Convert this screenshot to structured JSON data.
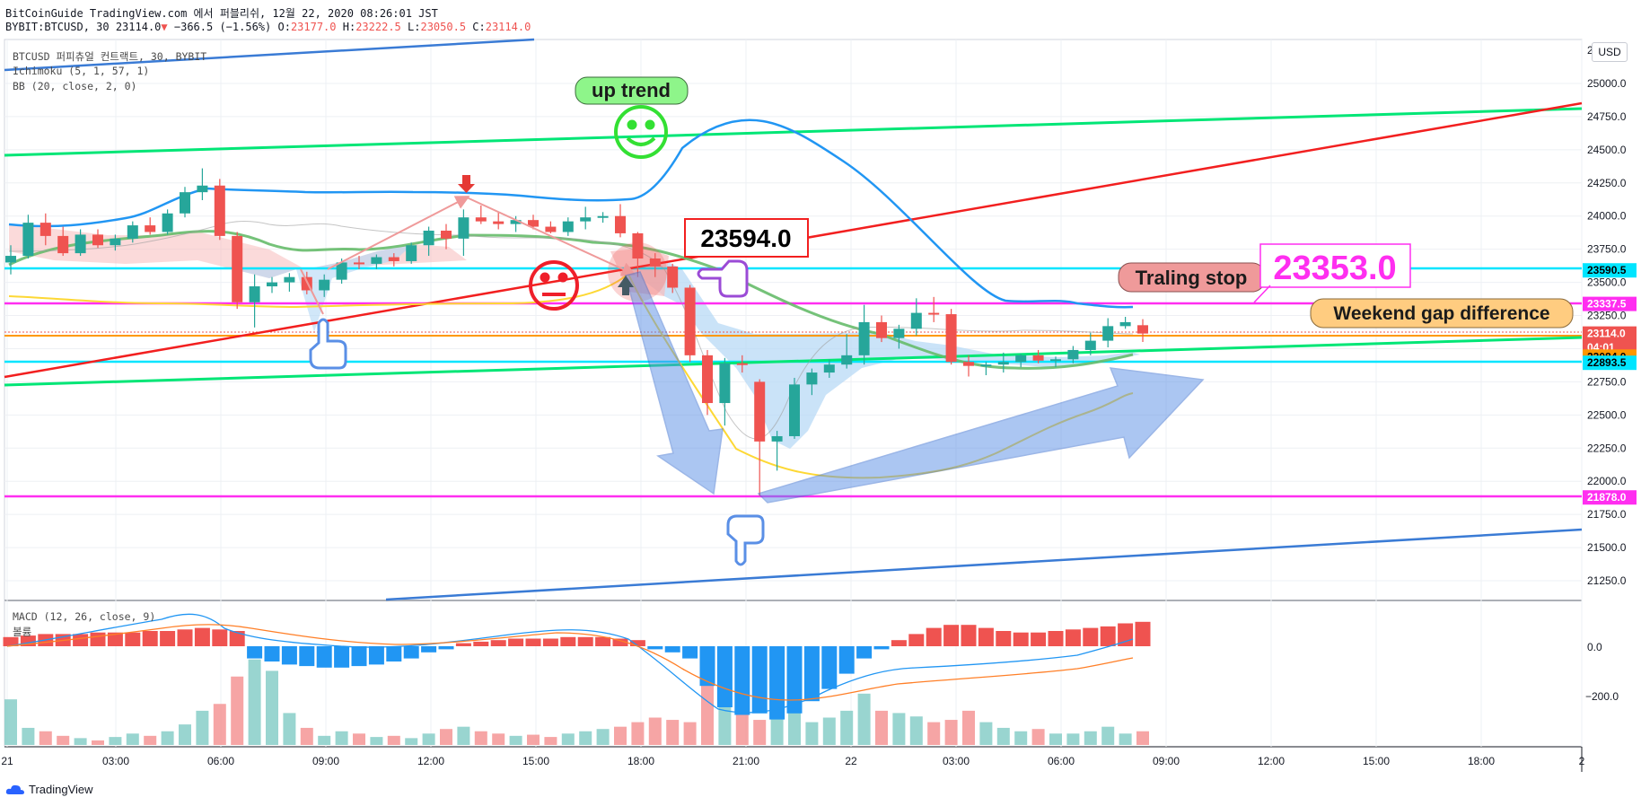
{
  "header": {
    "publish_line": "BitCoinGuide TradingView.com 에서 퍼블리쉬, 12월 22, 2020 08:26:01 JST",
    "symbol": "BYBIT:BTCUSD, 30",
    "last": "23114.0",
    "change": "−366.5 (−1.56%)",
    "o_label": "O:",
    "o": "23177.0",
    "h_label": "H:",
    "h": "23222.5",
    "l_label": "L:",
    "l": "23050.5",
    "c_label": "C:",
    "c": "23114.0"
  },
  "indicators": {
    "title": "BTCUSD 퍼피츄얼 컨트랙트, 30, BYBIT",
    "ichimoku": "Ichimoku (5, 1, 57, 1)",
    "bb": "BB (20, close, 2, 0)",
    "macd": "MACD (12, 26, close, 9)",
    "volume": "볼륨"
  },
  "currency_button": "USD",
  "annotations": {
    "up_trend": "up trend",
    "price_box": "23594.0",
    "trailing_stop": "Traling stop",
    "trailing_value": "23353.0",
    "weekend_gap": "Weekend gap difference"
  },
  "price_axis": {
    "top_partial": "25",
    "ticks": [
      "25000.0",
      "24750.0",
      "24500.0",
      "24250.0",
      "24000.0",
      "23750.0",
      "23500.0",
      "23250.0",
      "22750.0",
      "22500.0",
      "22250.0",
      "22000.0",
      "21750.0",
      "21500.0",
      "21250.0"
    ],
    "tags": [
      {
        "text": "23590.5",
        "bg": "#00e5ff",
        "fg": "#000000",
        "price": 23590.5
      },
      {
        "text": "23337.5",
        "bg": "#ff2ef0",
        "fg": "#ffffff",
        "price": 23337.5
      },
      {
        "text": "23114.0",
        "bg": "#ef5350",
        "fg": "#ffffff",
        "price": 23114.0
      },
      {
        "text": "04:01",
        "bg": "#ef5350",
        "fg": "#ffffff",
        "price": 23010
      },
      {
        "text": "23084.0",
        "bg": "#ff9800",
        "fg": "#000000",
        "price": 22940
      },
      {
        "text": "22893.5",
        "bg": "#00e5ff",
        "fg": "#000000",
        "price": 22893.5
      },
      {
        "text": "21878.0",
        "bg": "#ff2ef0",
        "fg": "#ffffff",
        "price": 21878.0
      }
    ]
  },
  "macd_axis": {
    "ticks": [
      "0.0",
      "−200.0"
    ]
  },
  "time_axis": {
    "ticks": [
      "21",
      "03:00",
      "06:00",
      "09:00",
      "12:00",
      "15:00",
      "18:00",
      "21:00",
      "22",
      "03:00",
      "06:00",
      "09:00",
      "12:00",
      "15:00",
      "18:00",
      "2"
    ]
  },
  "colors": {
    "bull": "#26a69a",
    "bear": "#ef5350",
    "bb_mid": "#2196f3",
    "trend_green": "#00e676",
    "trend_red": "#f21f1f",
    "trend_blue": "#3a7bd5",
    "cyan_level": "#00e5ff",
    "magenta_level": "#ff2ef0",
    "orange_level": "#ff9800"
  },
  "footer": {
    "brand": "TradingView"
  },
  "chart_data": {
    "type": "candlestick",
    "interval": "30",
    "ylim": [
      21100,
      25150
    ],
    "levels": [
      23590.5,
      23337.5,
      23114.0,
      22893.5,
      21878.0
    ],
    "candles": [
      {
        "t": "21 00:00",
        "o": 23650,
        "h": 23780,
        "l": 23560,
        "c": 23700
      },
      {
        "t": "21 00:30",
        "o": 23700,
        "h": 24010,
        "l": 23680,
        "c": 23950
      },
      {
        "t": "21 01:00",
        "o": 23950,
        "h": 24020,
        "l": 23780,
        "c": 23850
      },
      {
        "t": "21 01:30",
        "o": 23850,
        "h": 23920,
        "l": 23700,
        "c": 23720
      },
      {
        "t": "21 02:00",
        "o": 23720,
        "h": 23900,
        "l": 23700,
        "c": 23860
      },
      {
        "t": "21 02:30",
        "o": 23860,
        "h": 23900,
        "l": 23760,
        "c": 23780
      },
      {
        "t": "21 03:00",
        "o": 23780,
        "h": 23860,
        "l": 23740,
        "c": 23830
      },
      {
        "t": "21 03:30",
        "o": 23830,
        "h": 23960,
        "l": 23800,
        "c": 23930
      },
      {
        "t": "21 04:00",
        "o": 23930,
        "h": 23990,
        "l": 23860,
        "c": 23880
      },
      {
        "t": "21 04:30",
        "o": 23880,
        "h": 24050,
        "l": 23860,
        "c": 24020
      },
      {
        "t": "21 05:00",
        "o": 24020,
        "h": 24220,
        "l": 23990,
        "c": 24180
      },
      {
        "t": "21 05:30",
        "o": 24180,
        "h": 24360,
        "l": 24120,
        "c": 24230
      },
      {
        "t": "21 06:00",
        "o": 24230,
        "h": 24280,
        "l": 23820,
        "c": 23850
      },
      {
        "t": "21 06:30",
        "o": 23850,
        "h": 23880,
        "l": 23300,
        "c": 23350
      },
      {
        "t": "21 07:00",
        "o": 23350,
        "h": 23560,
        "l": 23160,
        "c": 23470
      },
      {
        "t": "21 07:30",
        "o": 23470,
        "h": 23540,
        "l": 23420,
        "c": 23500
      },
      {
        "t": "21 08:00",
        "o": 23500,
        "h": 23570,
        "l": 23430,
        "c": 23540
      },
      {
        "t": "21 08:30",
        "o": 23540,
        "h": 23580,
        "l": 23410,
        "c": 23440
      },
      {
        "t": "21 09:00",
        "o": 23440,
        "h": 23560,
        "l": 23390,
        "c": 23520
      },
      {
        "t": "21 09:30",
        "o": 23520,
        "h": 23680,
        "l": 23490,
        "c": 23650
      },
      {
        "t": "21 10:00",
        "o": 23650,
        "h": 23700,
        "l": 23600,
        "c": 23640
      },
      {
        "t": "21 10:30",
        "o": 23640,
        "h": 23710,
        "l": 23600,
        "c": 23690
      },
      {
        "t": "21 11:00",
        "o": 23690,
        "h": 23720,
        "l": 23620,
        "c": 23660
      },
      {
        "t": "21 11:30",
        "o": 23660,
        "h": 23800,
        "l": 23640,
        "c": 23780
      },
      {
        "t": "21 12:00",
        "o": 23780,
        "h": 23920,
        "l": 23700,
        "c": 23890
      },
      {
        "t": "21 12:30",
        "o": 23890,
        "h": 23940,
        "l": 23750,
        "c": 23830
      },
      {
        "t": "21 13:00",
        "o": 23830,
        "h": 24050,
        "l": 23700,
        "c": 23990
      },
      {
        "t": "21 13:30",
        "o": 23990,
        "h": 24080,
        "l": 23940,
        "c": 23960
      },
      {
        "t": "21 14:00",
        "o": 23960,
        "h": 24030,
        "l": 23900,
        "c": 23940
      },
      {
        "t": "21 14:30",
        "o": 23940,
        "h": 24000,
        "l": 23880,
        "c": 23970
      },
      {
        "t": "21 15:00",
        "o": 23970,
        "h": 24010,
        "l": 23900,
        "c": 23920
      },
      {
        "t": "21 15:30",
        "o": 23920,
        "h": 23960,
        "l": 23870,
        "c": 23880
      },
      {
        "t": "21 16:00",
        "o": 23880,
        "h": 23990,
        "l": 23850,
        "c": 23960
      },
      {
        "t": "21 16:30",
        "o": 23960,
        "h": 24070,
        "l": 23900,
        "c": 23990
      },
      {
        "t": "21 17:00",
        "o": 23990,
        "h": 24030,
        "l": 23950,
        "c": 24000
      },
      {
        "t": "21 17:30",
        "o": 24000,
        "h": 24090,
        "l": 23840,
        "c": 23870
      },
      {
        "t": "21 18:00",
        "o": 23870,
        "h": 23880,
        "l": 23540,
        "c": 23680
      },
      {
        "t": "21 18:30",
        "o": 23680,
        "h": 23720,
        "l": 23540,
        "c": 23620
      },
      {
        "t": "21 19:00",
        "o": 23620,
        "h": 23640,
        "l": 23420,
        "c": 23460
      },
      {
        "t": "21 19:30",
        "o": 23460,
        "h": 23480,
        "l": 22900,
        "c": 22950
      },
      {
        "t": "21 20:00",
        "o": 22950,
        "h": 22990,
        "l": 22500,
        "c": 22590
      },
      {
        "t": "21 20:30",
        "o": 22590,
        "h": 22930,
        "l": 22420,
        "c": 22890
      },
      {
        "t": "21 21:00",
        "o": 22890,
        "h": 22950,
        "l": 22820,
        "c": 22880
      },
      {
        "t": "21 21:30",
        "o": 22750,
        "h": 22770,
        "l": 21890,
        "c": 22300
      },
      {
        "t": "21 22:00",
        "o": 22300,
        "h": 22380,
        "l": 22080,
        "c": 22340
      },
      {
        "t": "21 22:30",
        "o": 22340,
        "h": 22780,
        "l": 22320,
        "c": 22730
      },
      {
        "t": "21 23:00",
        "o": 22730,
        "h": 22850,
        "l": 22650,
        "c": 22820
      },
      {
        "t": "21 23:30",
        "o": 22820,
        "h": 22920,
        "l": 22780,
        "c": 22880
      },
      {
        "t": "22 00:00",
        "o": 22880,
        "h": 23110,
        "l": 22850,
        "c": 22950
      },
      {
        "t": "22 00:30",
        "o": 22950,
        "h": 23330,
        "l": 22880,
        "c": 23200
      },
      {
        "t": "22 01:00",
        "o": 23200,
        "h": 23250,
        "l": 23050,
        "c": 23080
      },
      {
        "t": "22 01:30",
        "o": 23080,
        "h": 23180,
        "l": 23000,
        "c": 23150
      },
      {
        "t": "22 02:00",
        "o": 23150,
        "h": 23380,
        "l": 23100,
        "c": 23270
      },
      {
        "t": "22 02:30",
        "o": 23270,
        "h": 23390,
        "l": 23200,
        "c": 23260
      },
      {
        "t": "22 03:00",
        "o": 23260,
        "h": 23300,
        "l": 22880,
        "c": 22900
      },
      {
        "t": "22 03:30",
        "o": 22900,
        "h": 22950,
        "l": 22790,
        "c": 22870
      },
      {
        "t": "22 04:00",
        "o": 22870,
        "h": 22900,
        "l": 22800,
        "c": 22880
      },
      {
        "t": "22 04:30",
        "o": 22880,
        "h": 22970,
        "l": 22820,
        "c": 22900
      },
      {
        "t": "22 05:00",
        "o": 22900,
        "h": 22960,
        "l": 22860,
        "c": 22950
      },
      {
        "t": "22 05:30",
        "o": 22950,
        "h": 22990,
        "l": 22890,
        "c": 22910
      },
      {
        "t": "22 06:00",
        "o": 22910,
        "h": 22940,
        "l": 22860,
        "c": 22920
      },
      {
        "t": "22 06:30",
        "o": 22920,
        "h": 23020,
        "l": 22890,
        "c": 22990
      },
      {
        "t": "22 07:00",
        "o": 22990,
        "h": 23120,
        "l": 22950,
        "c": 23060
      },
      {
        "t": "22 07:30",
        "o": 23060,
        "h": 23230,
        "l": 23010,
        "c": 23170
      },
      {
        "t": "22 08:00",
        "o": 23170,
        "h": 23240,
        "l": 23150,
        "c": 23200
      },
      {
        "t": "22 08:30",
        "o": 23177,
        "h": 23222.5,
        "l": 23050.5,
        "c": 23114
      }
    ]
  }
}
